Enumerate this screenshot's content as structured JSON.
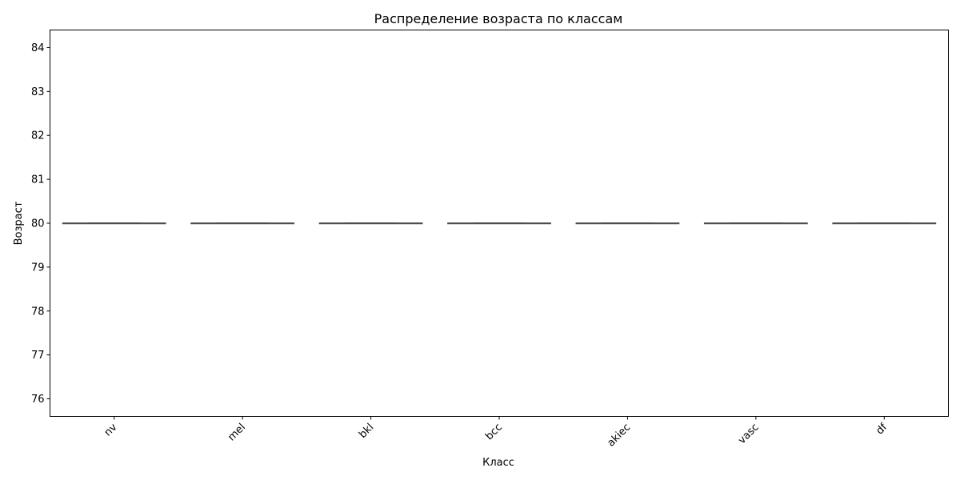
{
  "chart_data": {
    "type": "box",
    "title": "Распределение возраста по классам",
    "xlabel": "Класс",
    "ylabel": "Возраст",
    "categories": [
      "nv",
      "mel",
      "bkl",
      "bcc",
      "akiec",
      "vasc",
      "df"
    ],
    "values": [
      80,
      80,
      80,
      80,
      80,
      80,
      80
    ],
    "box_stats": [
      {
        "category": "nv",
        "min": 80,
        "q1": 80,
        "median": 80,
        "q3": 80,
        "max": 80
      },
      {
        "category": "mel",
        "min": 80,
        "q1": 80,
        "median": 80,
        "q3": 80,
        "max": 80
      },
      {
        "category": "bkl",
        "min": 80,
        "q1": 80,
        "median": 80,
        "q3": 80,
        "max": 80
      },
      {
        "category": "bcc",
        "min": 80,
        "q1": 80,
        "median": 80,
        "q3": 80,
        "max": 80
      },
      {
        "category": "akiec",
        "min": 80,
        "q1": 80,
        "median": 80,
        "q3": 80,
        "max": 80
      },
      {
        "category": "vasc",
        "min": 80,
        "q1": 80,
        "median": 80,
        "q3": 80,
        "max": 80
      },
      {
        "category": "df",
        "min": 80,
        "q1": 80,
        "median": 80,
        "q3": 80,
        "max": 80
      }
    ],
    "ylim": [
      75.6,
      84.4
    ],
    "yticks": [
      76,
      77,
      78,
      79,
      80,
      81,
      82,
      83,
      84
    ],
    "xtick_rotation_deg": 45,
    "grid": false,
    "legend": "none",
    "colors": {
      "box_line": "#4d4d4d",
      "axis": "#000000",
      "background": "#ffffff"
    }
  }
}
